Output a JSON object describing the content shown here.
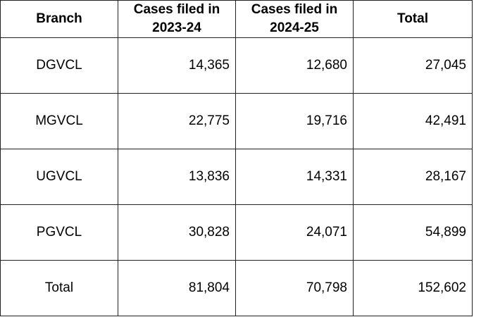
{
  "table": {
    "header": [
      "Branch",
      "Cases filed in 2023-24",
      "Cases filed in 2024-25",
      "Total"
    ],
    "rows": [
      [
        "DGVCL",
        "14,365",
        "12,680",
        "27,045"
      ],
      [
        "MGVCL",
        "22,775",
        "19,716",
        "42,491"
      ],
      [
        "UGVCL",
        "13,836",
        "14,331",
        "28,167"
      ],
      [
        "PGVCL",
        "30,828",
        "24,071",
        "54,899"
      ],
      [
        "Total",
        "81,804",
        "70,798",
        "152,602"
      ]
    ]
  }
}
